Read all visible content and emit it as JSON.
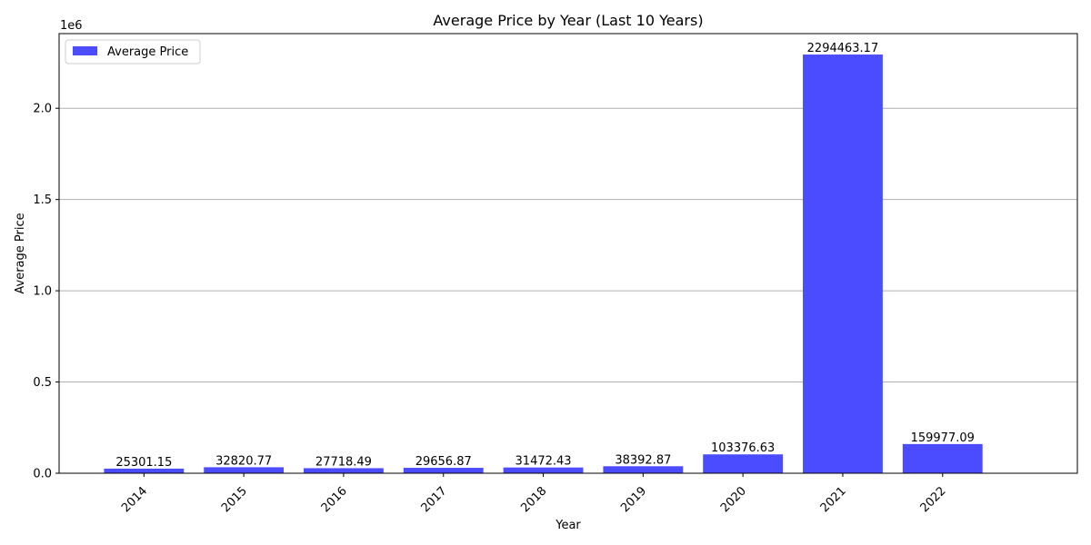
{
  "chart_data": {
    "type": "bar",
    "title": "Average Price by Year (Last 10 Years)",
    "xlabel": "Year",
    "ylabel": "Average Price",
    "y_scale_multiplier": "1e6",
    "categories": [
      "2014",
      "2015",
      "2016",
      "2017",
      "2018",
      "2019",
      "2020",
      "2021",
      "2022"
    ],
    "series": [
      {
        "name": "Average Price",
        "values": [
          25301.15,
          32820.77,
          27718.49,
          29656.87,
          31472.43,
          38392.87,
          103376.63,
          2294463.17,
          159977.09
        ],
        "value_labels": [
          "25301.15",
          "32820.77",
          "27718.49",
          "29656.87",
          "31472.43",
          "38392.87",
          "103376.63",
          "2294463.17",
          "159977.09"
        ],
        "color": "#4b4bff"
      }
    ],
    "ylim": [
      0,
      2409186.33
    ],
    "yticks": [
      0,
      500000,
      1000000,
      1500000,
      2000000
    ],
    "ytick_labels": [
      "0.0",
      "0.5",
      "1.0",
      "1.5",
      "2.0"
    ],
    "grid": "y-major",
    "legend_position": "upper-left",
    "xtick_rotation_deg": 45
  }
}
